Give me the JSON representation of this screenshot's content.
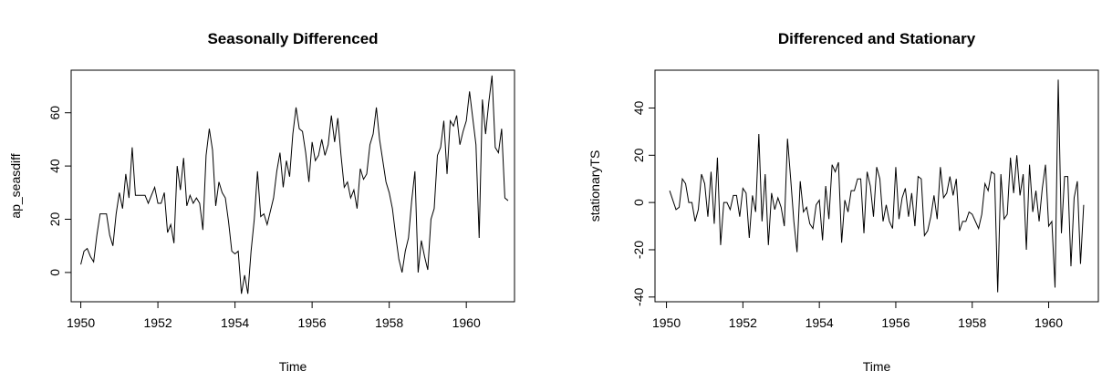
{
  "chart_data": [
    {
      "type": "line",
      "title": "Seasonally Differenced",
      "xlabel": "Time",
      "ylabel": "ap_seasdiff",
      "xlim": [
        1949.75,
        1961.25
      ],
      "ylim": [
        -11,
        76
      ],
      "xticks": [
        1950,
        1952,
        1954,
        1956,
        1958,
        1960
      ],
      "xtick_labels": [
        "1950",
        "1952",
        "1954",
        "1956",
        "1958",
        "1960"
      ],
      "yticks": [
        0,
        20,
        40,
        60
      ],
      "ytick_labels": [
        "0",
        "20",
        "40",
        "60"
      ],
      "grid": false,
      "series": [
        {
          "x_start": 1950.0,
          "x_step": 0.0833333,
          "values": [
            3,
            8,
            9,
            6,
            4,
            14,
            22,
            22,
            22,
            14,
            10,
            22,
            30,
            24,
            37,
            28,
            47,
            29,
            29,
            29,
            29,
            26,
            29,
            32,
            26,
            26,
            30,
            15,
            18,
            11,
            40,
            31,
            43,
            25,
            29,
            26,
            28,
            26,
            16,
            44,
            54,
            46,
            25,
            34,
            30,
            28,
            19,
            8,
            7,
            8,
            -8,
            -1,
            -8,
            8,
            20,
            38,
            21,
            22,
            18,
            23,
            28,
            38,
            45,
            32,
            42,
            36,
            52,
            62,
            54,
            53,
            45,
            34,
            49,
            42,
            44,
            50,
            44,
            48,
            59,
            49,
            58,
            44,
            32,
            34,
            28,
            31,
            24,
            39,
            35,
            37,
            48,
            52,
            62,
            50,
            42,
            34,
            30,
            24,
            14,
            5,
            0,
            8,
            13,
            27,
            38,
            0,
            12,
            6,
            1,
            20,
            24,
            44,
            47,
            57,
            37,
            57,
            55,
            59,
            48,
            53,
            57,
            68,
            58,
            48,
            13,
            65,
            52,
            64,
            74,
            47,
            45,
            54,
            28,
            27
          ]
        }
      ]
    },
    {
      "type": "line",
      "title": "Differenced and Stationary",
      "xlabel": "Time",
      "ylabel": "stationaryTS",
      "xlim": [
        1949.7,
        1961.3
      ],
      "ylim": [
        -42,
        56
      ],
      "xticks": [
        1950,
        1952,
        1954,
        1956,
        1958,
        1960
      ],
      "xtick_labels": [
        "1950",
        "1952",
        "1954",
        "1956",
        "1958",
        "1960"
      ],
      "yticks": [
        -40,
        -20,
        0,
        20,
        40
      ],
      "ytick_labels": [
        "-40",
        "-20",
        "0",
        "20",
        "40"
      ],
      "grid": false,
      "series": [
        {
          "x_start": 1950.0833,
          "x_step": 0.0833333,
          "values": [
            5,
            1,
            -3,
            -2,
            10,
            8,
            0,
            0,
            -8,
            -3,
            12,
            8,
            -6,
            13,
            -9,
            19,
            -18,
            0,
            0,
            -3,
            3,
            3,
            -6,
            6,
            4,
            -15,
            3,
            -4,
            29,
            -8,
            12,
            -18,
            4,
            -3,
            2,
            -2,
            -10,
            27,
            10,
            -8,
            -21,
            9,
            -4,
            -2,
            -9,
            -11,
            -1,
            1,
            -16,
            7,
            -7,
            16,
            13,
            17,
            -17,
            1,
            -4,
            5,
            5,
            10,
            10,
            -13,
            13,
            7,
            -6,
            15,
            10,
            -8,
            -1,
            -8,
            -11,
            15,
            -7,
            2,
            6,
            -6,
            4,
            -10,
            11,
            10,
            -14,
            -12,
            -6,
            3,
            -7,
            15,
            2,
            4,
            11,
            3,
            10,
            -12,
            -8,
            -8,
            -4,
            -5,
            -8,
            -11,
            -5,
            8,
            5,
            13,
            12,
            -38,
            12,
            -7,
            -5,
            19,
            4,
            20,
            3,
            12,
            -20,
            16,
            -4,
            5,
            -8,
            6,
            16,
            -10,
            -8,
            -36,
            52,
            -13,
            11,
            11,
            -27,
            2,
            9,
            -26,
            -1
          ]
        }
      ]
    }
  ]
}
